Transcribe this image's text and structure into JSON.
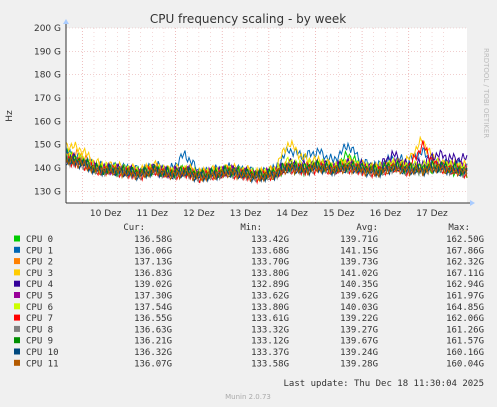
{
  "chart_data": {
    "type": "line",
    "title": "CPU frequency scaling - by week",
    "ylabel": "Hz",
    "ylim": [
      125000000000,
      200000000000
    ],
    "y_ticks": [
      {
        "value": 130000000000,
        "label": "130 G"
      },
      {
        "value": 140000000000,
        "label": "140 G"
      },
      {
        "value": 150000000000,
        "label": "150 G"
      },
      {
        "value": 160000000000,
        "label": "160 G"
      },
      {
        "value": 170000000000,
        "label": "170 G"
      },
      {
        "value": 180000000000,
        "label": "180 G"
      },
      {
        "value": 190000000000,
        "label": "190 G"
      },
      {
        "value": 200000000000,
        "label": "200 G"
      }
    ],
    "x_ticks": [
      "10 Dez",
      "11 Dez",
      "12 Dez",
      "13 Dez",
      "14 Dez",
      "15 Dez",
      "16 Dez",
      "17 Dez"
    ],
    "grid": true,
    "watermark": "RRDTOOL / TOBI OETIKER",
    "legend_headers": [
      "Cur:",
      "Min:",
      "Avg:",
      "Max:"
    ],
    "series": [
      {
        "name": "CPU 0",
        "color": "#00cc00",
        "cur": "136.58G",
        "min": "133.42G",
        "avg": "139.71G",
        "max": "162.50G",
        "values": [
          146,
          143,
          139,
          140,
          139,
          138,
          140,
          138,
          139,
          137,
          138,
          139,
          138,
          137,
          138,
          140,
          139,
          141,
          139,
          146,
          140,
          139,
          141,
          140,
          139,
          140,
          139,
          138
        ]
      },
      {
        "name": "CPU 1",
        "color": "#0066b3",
        "cur": "136.06G",
        "min": "133.68G",
        "avg": "141.15G",
        "max": "167.86G",
        "values": [
          147,
          144,
          141,
          140,
          140,
          139,
          141,
          139,
          146,
          138,
          139,
          140,
          139,
          138,
          139,
          148,
          145,
          147,
          143,
          150,
          142,
          141,
          144,
          143,
          147,
          141,
          142,
          141
        ]
      },
      {
        "name": "CPU 2",
        "color": "#ff8000",
        "cur": "137.13G",
        "min": "133.70G",
        "avg": "139.73G",
        "max": "162.32G",
        "values": [
          145,
          146,
          140,
          139,
          139,
          138,
          140,
          138,
          139,
          137,
          138,
          139,
          138,
          137,
          138,
          141,
          140,
          141,
          140,
          141,
          140,
          139,
          141,
          140,
          139,
          141,
          140,
          139
        ]
      },
      {
        "name": "CPU 3",
        "color": "#ffcc00",
        "cur": "136.83G",
        "min": "133.80G",
        "avg": "141.02G",
        "max": "167.11G",
        "values": [
          150,
          148,
          142,
          141,
          140,
          139,
          141,
          139,
          140,
          138,
          139,
          140,
          139,
          138,
          139,
          151,
          144,
          143,
          141,
          143,
          141,
          140,
          142,
          143,
          152,
          141,
          142,
          141
        ]
      },
      {
        "name": "CPU 4",
        "color": "#330099",
        "cur": "139.02G",
        "min": "132.89G",
        "avg": "140.35G",
        "max": "162.94G",
        "values": [
          145,
          143,
          140,
          140,
          139,
          138,
          140,
          138,
          139,
          137,
          138,
          139,
          138,
          137,
          138,
          142,
          141,
          142,
          140,
          142,
          141,
          140,
          146,
          141,
          142,
          146,
          144,
          144
        ]
      },
      {
        "name": "CPU 5",
        "color": "#990099",
        "cur": "137.30G",
        "min": "133.62G",
        "avg": "139.62G",
        "max": "161.97G",
        "values": [
          144,
          143,
          140,
          139,
          139,
          138,
          139,
          138,
          139,
          137,
          138,
          139,
          138,
          137,
          138,
          141,
          140,
          141,
          140,
          141,
          140,
          139,
          142,
          140,
          140,
          142,
          141,
          140
        ]
      },
      {
        "name": "CPU 6",
        "color": "#ccff00",
        "cur": "137.54G",
        "min": "133.80G",
        "avg": "140.03G",
        "max": "164.85G",
        "values": [
          145,
          144,
          140,
          140,
          139,
          138,
          140,
          138,
          139,
          137,
          138,
          139,
          138,
          137,
          138,
          143,
          141,
          142,
          140,
          142,
          140,
          140,
          142,
          141,
          141,
          142,
          141,
          140
        ]
      },
      {
        "name": "CPU 7",
        "color": "#ff0000",
        "cur": "136.55G",
        "min": "133.61G",
        "avg": "139.22G",
        "max": "162.06G",
        "values": [
          143,
          142,
          139,
          139,
          138,
          137,
          139,
          137,
          138,
          136,
          137,
          138,
          137,
          136,
          137,
          140,
          139,
          140,
          139,
          140,
          139,
          138,
          140,
          139,
          150,
          140,
          139,
          138
        ]
      },
      {
        "name": "CPU 8",
        "color": "#808080",
        "cur": "136.63G",
        "min": "133.32G",
        "avg": "139.27G",
        "max": "161.26G",
        "values": [
          143,
          142,
          139,
          139,
          138,
          137,
          139,
          137,
          138,
          136,
          137,
          138,
          137,
          136,
          137,
          140,
          139,
          140,
          139,
          140,
          139,
          138,
          140,
          139,
          139,
          140,
          139,
          138
        ]
      },
      {
        "name": "CPU 9",
        "color": "#008f00",
        "cur": "136.21G",
        "min": "133.12G",
        "avg": "139.67G",
        "max": "161.57G",
        "values": [
          144,
          143,
          140,
          139,
          139,
          138,
          139,
          138,
          139,
          137,
          138,
          139,
          138,
          137,
          138,
          141,
          140,
          141,
          140,
          141,
          140,
          139,
          141,
          140,
          140,
          141,
          140,
          139
        ]
      },
      {
        "name": "CPU 10",
        "color": "#00487d",
        "cur": "136.32G",
        "min": "133.37G",
        "avg": "139.24G",
        "max": "160.16G",
        "values": [
          143,
          142,
          139,
          139,
          138,
          137,
          139,
          137,
          138,
          136,
          137,
          138,
          137,
          136,
          137,
          140,
          139,
          140,
          139,
          140,
          139,
          138,
          140,
          139,
          139,
          140,
          139,
          138
        ]
      },
      {
        "name": "CPU 11",
        "color": "#b35a00",
        "cur": "136.07G",
        "min": "133.58G",
        "avg": "139.28G",
        "max": "160.04G",
        "values": [
          143,
          142,
          139,
          139,
          138,
          137,
          139,
          137,
          138,
          136,
          137,
          138,
          137,
          136,
          137,
          140,
          139,
          140,
          139,
          140,
          139,
          138,
          140,
          139,
          139,
          140,
          139,
          138
        ]
      }
    ],
    "last_update": "Last update:  Thu Dec 18 11:30:04 2025",
    "footer": "Munin 2.0.73"
  }
}
